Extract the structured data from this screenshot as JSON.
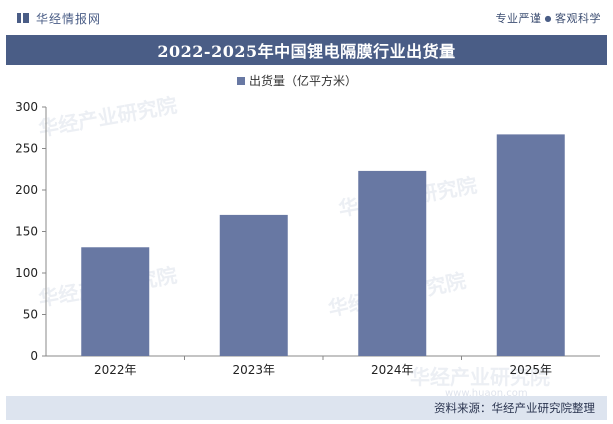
{
  "header": {
    "brand": "华经情报网",
    "tagline_left": "专业严谨",
    "tagline_right": "客观科学"
  },
  "chart_data": {
    "type": "bar",
    "title": "2022-2025年中国锂电隔膜行业出货量",
    "categories": [
      "2022年",
      "2023年",
      "2024年",
      "2025年"
    ],
    "series": [
      {
        "name": "出货量（亿平方米）",
        "values": [
          131,
          170,
          223,
          267
        ],
        "color": "#6878a3"
      }
    ],
    "ylim": [
      0,
      300
    ],
    "yticks": [
      0,
      50,
      100,
      150,
      200,
      250,
      300
    ],
    "xlabel": "",
    "ylabel": "",
    "grid": false,
    "legend": "top-center"
  },
  "watermark": {
    "brand": "华经产业研究院",
    "url": "www.huaon.com"
  },
  "footer": {
    "source": "资料来源：华经产业研究院整理"
  },
  "colors": {
    "accent": "#4a5d86",
    "bar": "#6878a3",
    "footer_bg": "#dde4ef"
  }
}
